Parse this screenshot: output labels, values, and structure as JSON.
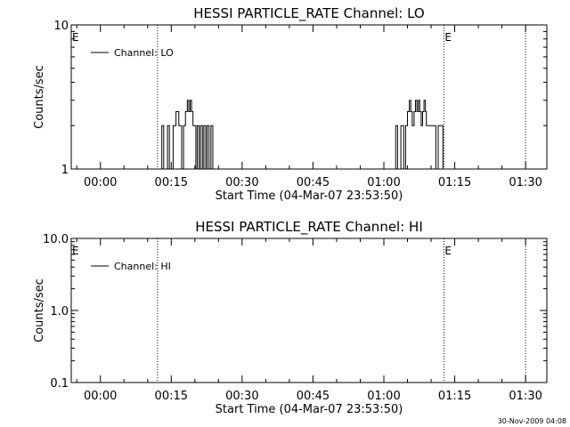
{
  "footer_timestamp": "30-Nov-2009 04:08",
  "chart_data": [
    {
      "type": "line",
      "title": "HESSI PARTICLE_RATE Channel: LO",
      "xlabel": "Start Time (04-Mar-07 23:53:50)",
      "ylabel": "Counts/sec",
      "yscale": "log",
      "ylim": [
        1,
        10
      ],
      "xlim_minutes": [
        -6.17,
        94.5
      ],
      "xticks": [
        {
          "minutes": 0,
          "label": "00:00"
        },
        {
          "minutes": 15,
          "label": "00:15"
        },
        {
          "minutes": 30,
          "label": "00:30"
        },
        {
          "minutes": 45,
          "label": "00:45"
        },
        {
          "minutes": 60,
          "label": "01:00"
        },
        {
          "minutes": 75,
          "label": "01:15"
        },
        {
          "minutes": 90,
          "label": "01:30"
        }
      ],
      "yticks": [
        {
          "value": 1,
          "label": "1"
        },
        {
          "value": 10,
          "label": "10"
        }
      ],
      "legend": {
        "label": "Channel: LO",
        "placement": "top-left"
      },
      "event_markers": [
        {
          "minutes": 12.1,
          "label": ""
        },
        {
          "minutes": 72.7,
          "label": "E"
        },
        {
          "minutes": 90.0,
          "label": ""
        }
      ],
      "corner_label": "E",
      "series": [
        {
          "name": "Channel: LO",
          "points": [
            [
              13.0,
              1
            ],
            [
              13.0,
              2
            ],
            [
              13.4,
              2
            ],
            [
              13.4,
              1
            ],
            [
              14.2,
              1
            ],
            [
              14.2,
              2
            ],
            [
              14.6,
              2
            ],
            [
              14.6,
              1
            ],
            [
              15.4,
              1
            ],
            [
              15.4,
              2
            ],
            [
              16.0,
              2
            ],
            [
              16.0,
              2.5
            ],
            [
              16.6,
              2.5
            ],
            [
              16.6,
              2
            ],
            [
              17.2,
              2
            ],
            [
              17.2,
              1
            ],
            [
              17.6,
              1
            ],
            [
              17.6,
              2
            ],
            [
              18.0,
              2
            ],
            [
              18.0,
              2.5
            ],
            [
              18.4,
              2.5
            ],
            [
              18.4,
              3
            ],
            [
              18.7,
              3
            ],
            [
              18.7,
              2.5
            ],
            [
              19.0,
              2.5
            ],
            [
              19.0,
              3
            ],
            [
              19.3,
              3
            ],
            [
              19.3,
              2.5
            ],
            [
              19.6,
              2.5
            ],
            [
              19.6,
              2
            ],
            [
              20.2,
              2
            ],
            [
              20.2,
              1
            ],
            [
              20.5,
              1
            ],
            [
              20.5,
              2
            ],
            [
              20.9,
              2
            ],
            [
              20.9,
              1
            ],
            [
              21.2,
              1
            ],
            [
              21.2,
              2
            ],
            [
              21.6,
              2
            ],
            [
              21.6,
              1
            ],
            [
              21.9,
              1
            ],
            [
              21.9,
              2
            ],
            [
              22.3,
              2
            ],
            [
              22.3,
              1
            ],
            [
              22.6,
              1
            ],
            [
              22.6,
              2
            ],
            [
              23.0,
              2
            ],
            [
              23.0,
              1
            ],
            [
              23.4,
              1
            ],
            [
              23.4,
              2
            ],
            [
              23.8,
              2
            ],
            [
              23.8,
              1
            ],
            [
              62.5,
              1
            ],
            [
              62.5,
              2
            ],
            [
              62.9,
              2
            ],
            [
              62.9,
              1
            ],
            [
              63.6,
              1
            ],
            [
              63.6,
              2
            ],
            [
              64.2,
              2
            ],
            [
              64.2,
              1
            ],
            [
              64.6,
              1
            ],
            [
              64.6,
              2
            ],
            [
              65.0,
              2
            ],
            [
              65.0,
              2.5
            ],
            [
              65.4,
              2.5
            ],
            [
              65.4,
              3
            ],
            [
              65.7,
              3
            ],
            [
              65.7,
              2.5
            ],
            [
              66.0,
              2.5
            ],
            [
              66.0,
              2
            ],
            [
              66.4,
              2
            ],
            [
              66.4,
              2.5
            ],
            [
              66.7,
              2.5
            ],
            [
              66.7,
              3
            ],
            [
              67.0,
              3
            ],
            [
              67.0,
              2.5
            ],
            [
              67.3,
              2.5
            ],
            [
              67.3,
              3
            ],
            [
              67.6,
              3
            ],
            [
              67.6,
              2.5
            ],
            [
              67.9,
              2.5
            ],
            [
              67.9,
              2
            ],
            [
              68.2,
              2
            ],
            [
              68.2,
              2.5
            ],
            [
              68.5,
              2.5
            ],
            [
              68.5,
              3
            ],
            [
              68.8,
              3
            ],
            [
              68.8,
              2.5
            ],
            [
              69.0,
              2.5
            ],
            [
              69.0,
              2
            ],
            [
              71.0,
              2
            ],
            [
              71.0,
              1
            ],
            [
              71.5,
              1
            ],
            [
              71.5,
              2
            ],
            [
              72.5,
              2
            ],
            [
              72.5,
              1
            ]
          ]
        }
      ]
    },
    {
      "type": "line",
      "title": "HESSI PARTICLE_RATE Channel: HI",
      "xlabel": "Start Time (04-Mar-07 23:53:50)",
      "ylabel": "Counts/sec",
      "yscale": "log",
      "ylim": [
        0.1,
        10
      ],
      "xlim_minutes": [
        -6.17,
        94.5
      ],
      "xticks": [
        {
          "minutes": 0,
          "label": "00:00"
        },
        {
          "minutes": 15,
          "label": "00:15"
        },
        {
          "minutes": 30,
          "label": "00:30"
        },
        {
          "minutes": 45,
          "label": "00:45"
        },
        {
          "minutes": 60,
          "label": "01:00"
        },
        {
          "minutes": 75,
          "label": "01:15"
        },
        {
          "minutes": 90,
          "label": "01:30"
        }
      ],
      "yticks": [
        {
          "value": 0.1,
          "label": "0.1"
        },
        {
          "value": 1,
          "label": "1.0"
        },
        {
          "value": 10,
          "label": "10.0"
        }
      ],
      "legend": {
        "label": "Channel: HI",
        "placement": "top-left"
      },
      "event_markers": [
        {
          "minutes": 12.1,
          "label": ""
        },
        {
          "minutes": 72.7,
          "label": "E"
        },
        {
          "minutes": 90.0,
          "label": ""
        }
      ],
      "corner_label": "E",
      "series": [
        {
          "name": "Channel: HI",
          "points": []
        }
      ]
    }
  ]
}
